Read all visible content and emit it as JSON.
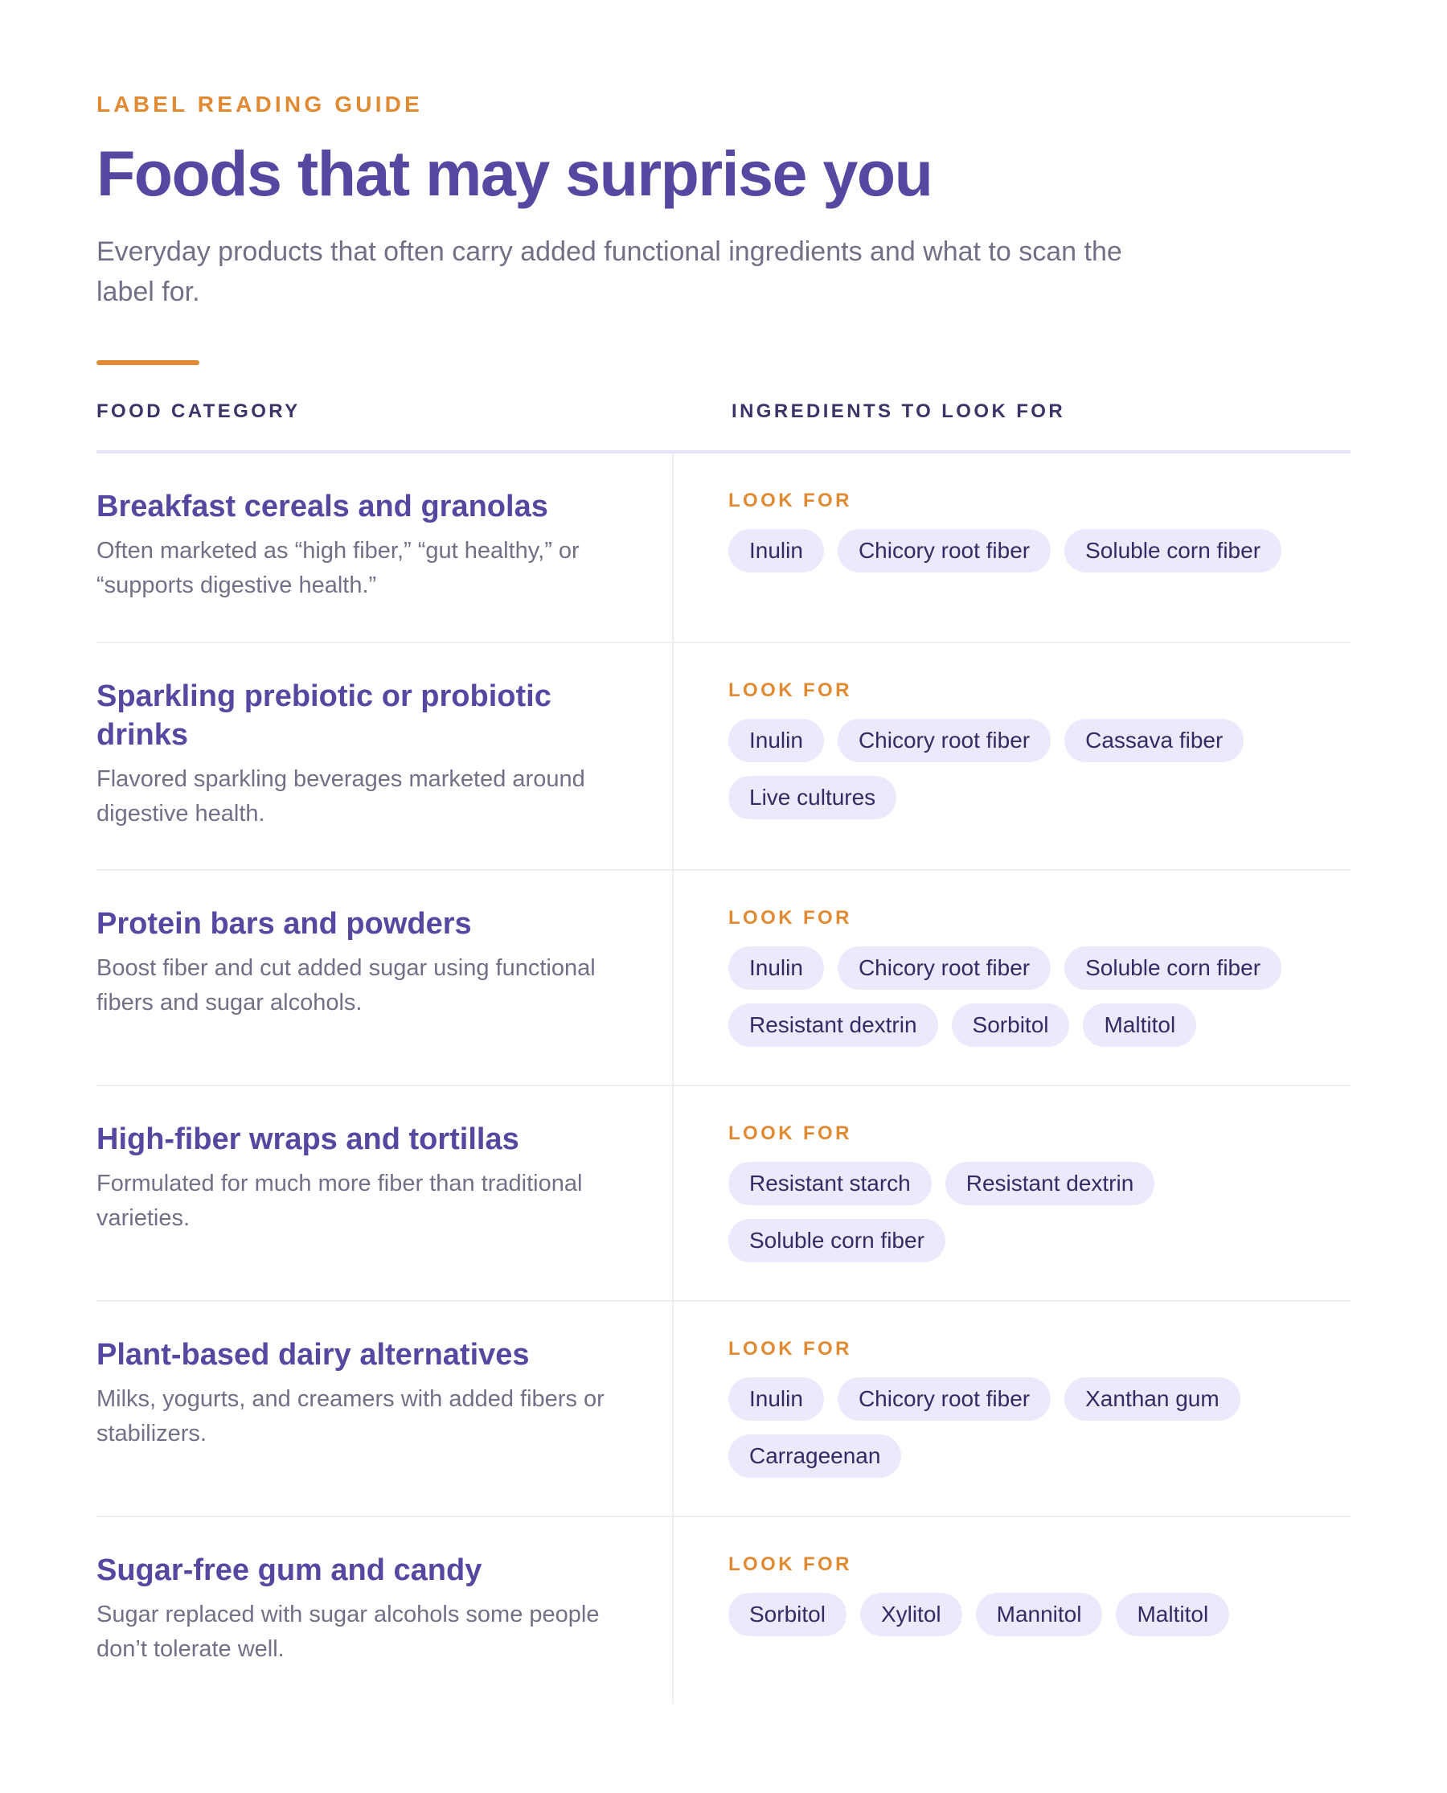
{
  "header": {
    "eyebrow": "LABEL READING GUIDE",
    "title": "Foods that may surprise you",
    "subtitle": "Everyday products that often carry added functional ingredients and what to scan the label for."
  },
  "columns": {
    "left": "FOOD CATEGORY",
    "right": "INGREDIENTS TO LOOK FOR"
  },
  "look_for_label": "LOOK FOR",
  "rows": [
    {
      "title": "Breakfast cereals and granolas",
      "description": "Often marketed as “high fiber,” “gut healthy,” or “supports digestive health.”",
      "ingredients": [
        "Inulin",
        "Chicory root fiber",
        "Soluble corn fiber"
      ]
    },
    {
      "title": "Sparkling prebiotic or probiotic drinks",
      "description": "Flavored sparkling beverages marketed around digestive health.",
      "ingredients": [
        "Inulin",
        "Chicory root fiber",
        "Cassava fiber",
        "Live cultures"
      ]
    },
    {
      "title": "Protein bars and powders",
      "description": "Boost fiber and cut added sugar using functional fibers and sugar alcohols.",
      "ingredients": [
        "Inulin",
        "Chicory root fiber",
        "Soluble corn fiber",
        "Resistant dextrin",
        "Sorbitol",
        "Maltitol"
      ]
    },
    {
      "title": "High-fiber wraps and tortillas",
      "description": "Formulated for much more fiber than traditional varieties.",
      "ingredients": [
        "Resistant starch",
        "Resistant dextrin",
        "Soluble corn fiber"
      ]
    },
    {
      "title": "Plant-based dairy alternatives",
      "description": "Milks, yogurts, and creamers with added fibers or stabilizers.",
      "ingredients": [
        "Inulin",
        "Chicory root fiber",
        "Xanthan gum",
        "Carrageenan"
      ]
    },
    {
      "title": "Sugar-free gum and candy",
      "description": "Sugar replaced with sugar alcohols some people don’t tolerate well.",
      "ingredients": [
        "Sorbitol",
        "Xylitol",
        "Mannitol",
        "Maltitol"
      ]
    }
  ],
  "colors": {
    "accent": "#e08a33",
    "heading": "#5548a0",
    "chip_background": "#ebe9fb",
    "body_text": "#736f86"
  }
}
